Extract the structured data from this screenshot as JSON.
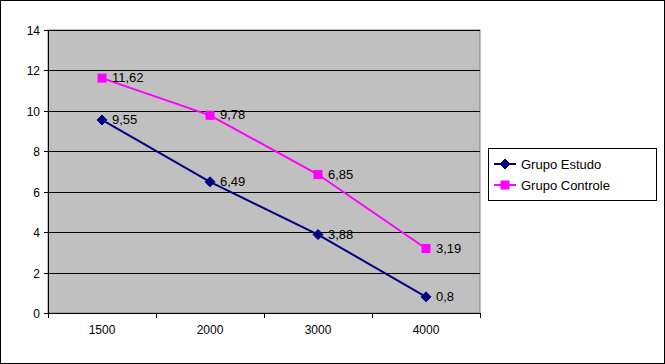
{
  "chart_data": {
    "type": "line",
    "categories": [
      "1500",
      "2000",
      "3000",
      "4000"
    ],
    "series": [
      {
        "name": "Grupo Estudo",
        "color": "#000080",
        "marker": "diamond",
        "line_style": "solid",
        "values": [
          9.55,
          6.49,
          3.88,
          0.8
        ],
        "value_labels": [
          "9,55",
          "6,49",
          "3,88",
          "0,8"
        ]
      },
      {
        "name": "Grupo Controle",
        "color": "#ff00ff",
        "marker": "square",
        "line_style": "solid",
        "values": [
          11.62,
          9.78,
          6.85,
          3.19
        ],
        "value_labels": [
          "11,62",
          "9,78",
          "6,85",
          "3,19"
        ]
      }
    ],
    "ylim": [
      0,
      14
    ],
    "yticks": [
      0,
      2,
      4,
      6,
      8,
      10,
      12,
      14
    ],
    "grid": true,
    "data_labels": true,
    "legend": "right"
  }
}
